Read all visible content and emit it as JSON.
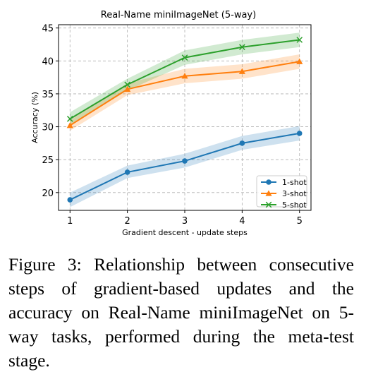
{
  "chart_data": {
    "type": "line",
    "title": "Real-Name miniImageNet (5-way)",
    "xlabel": "Gradient descent - update steps",
    "ylabel": "Accuracy (%)",
    "x": [
      1,
      2,
      3,
      4,
      5
    ],
    "xticks": [
      "1",
      "2",
      "3",
      "4",
      "5"
    ],
    "yticks": [
      "20",
      "25",
      "30",
      "35",
      "40",
      "45"
    ],
    "xlim": [
      0.8,
      5.2
    ],
    "ylim": [
      17.3,
      45.5
    ],
    "grid": true,
    "legend_position": "lower-right",
    "series": [
      {
        "name": "1-shot",
        "color": "#1f77b4",
        "marker": "circle",
        "values": [
          18.9,
          23.1,
          24.8,
          27.5,
          29.0
        ],
        "band_low": [
          17.8,
          22.2,
          23.8,
          26.5,
          27.9
        ],
        "band_high": [
          20.0,
          24.1,
          25.9,
          28.6,
          30.1
        ]
      },
      {
        "name": "3-shot",
        "color": "#ff7f0e",
        "marker": "triangle-up",
        "values": [
          30.2,
          35.7,
          37.7,
          38.4,
          39.9
        ],
        "band_low": [
          29.4,
          34.8,
          36.6,
          37.3,
          38.8
        ],
        "band_high": [
          31.0,
          36.6,
          38.8,
          39.5,
          41.0
        ]
      },
      {
        "name": "5-shot",
        "color": "#2ca02c",
        "marker": "x",
        "values": [
          31.2,
          36.4,
          40.5,
          42.1,
          43.2
        ],
        "band_low": [
          30.2,
          35.5,
          39.4,
          41.0,
          42.1
        ],
        "band_high": [
          32.2,
          37.3,
          41.6,
          43.2,
          44.3
        ]
      }
    ]
  },
  "caption": "Figure 3: Relationship between consecutive steps of gradient-based updates and the accuracy on Real-Name miniImageNet on 5-way tasks, performed during the meta-test stage."
}
